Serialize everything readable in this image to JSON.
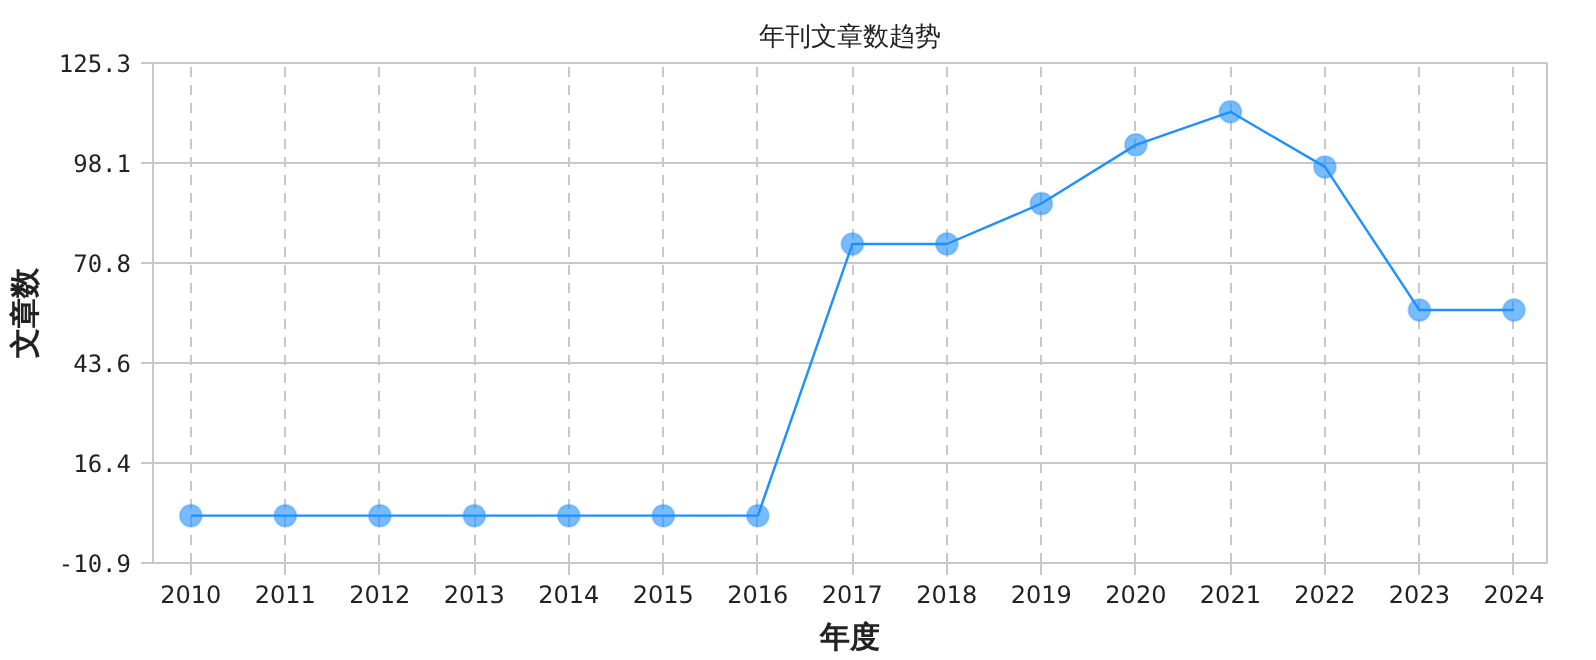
{
  "chart_data": {
    "type": "line",
    "title": "年刊文章数趋势",
    "xlabel": "年度",
    "ylabel": "文章数",
    "categories": [
      "2010",
      "2011",
      "2012",
      "2013",
      "2014",
      "2015",
      "2016",
      "2017",
      "2018",
      "2019",
      "2020",
      "2021",
      "2022",
      "2023",
      "2024"
    ],
    "series": [
      {
        "color": "#1e90ff",
        "values": [
          2,
          2,
          2,
          2,
          2,
          2,
          2,
          76,
          76,
          87,
          103,
          112,
          97,
          58,
          58
        ]
      }
    ],
    "ylim": [
      -10.9,
      125.3
    ],
    "yticks": [
      -10.9,
      16.4,
      43.6,
      70.8,
      98.1,
      125.3
    ],
    "grid": true,
    "marker": "circle",
    "line_style": "solid"
  }
}
